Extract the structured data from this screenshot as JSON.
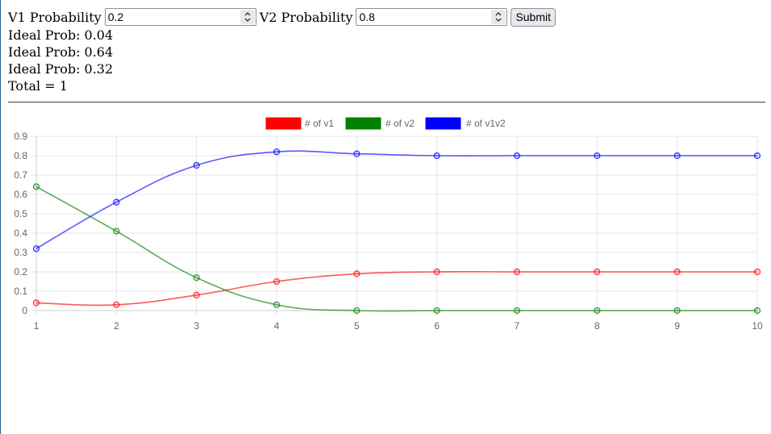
{
  "form": {
    "v1_label": "V1 Probability",
    "v1_value": "0.2",
    "v2_label": "V2 Probability",
    "v2_value": "0.8",
    "submit_label": "Submit",
    "spinner_icon": "spinner-updown-icon"
  },
  "results": [
    "Ideal Prob: 0.04",
    "Ideal Prob: 0.64",
    "Ideal Prob: 0.32",
    "Total = 1"
  ],
  "chart_data": {
    "type": "line",
    "x": [
      1,
      2,
      3,
      4,
      5,
      6,
      7,
      8,
      9,
      10
    ],
    "ylim": [
      0,
      0.9
    ],
    "yticks": [
      0,
      0.1,
      0.2,
      0.3,
      0.4,
      0.5,
      0.6,
      0.7,
      0.8,
      0.9
    ],
    "ytick_labels": [
      "0",
      "0.1",
      "0.2",
      "0.3",
      "0.4",
      "0.5",
      "0.6",
      "0.7",
      "0.8",
      "0.9"
    ],
    "xtick_labels": [
      "1",
      "2",
      "3",
      "4",
      "5",
      "6",
      "7",
      "8",
      "9",
      "10"
    ],
    "grid": true,
    "legend_position": "top-center",
    "series": [
      {
        "name": "# of v1",
        "color": "#ff0000",
        "values": [
          0.04,
          0.03,
          0.08,
          0.15,
          0.19,
          0.2,
          0.2,
          0.2,
          0.2,
          0.2
        ]
      },
      {
        "name": "# of v2",
        "color": "#008000",
        "values": [
          0.64,
          0.41,
          0.17,
          0.03,
          0.0,
          0.0,
          0.0,
          0.0,
          0.0,
          0.0
        ]
      },
      {
        "name": "# of v1v2",
        "color": "#0000ff",
        "values": [
          0.32,
          0.56,
          0.75,
          0.82,
          0.81,
          0.8,
          0.8,
          0.8,
          0.8,
          0.8
        ]
      }
    ]
  }
}
